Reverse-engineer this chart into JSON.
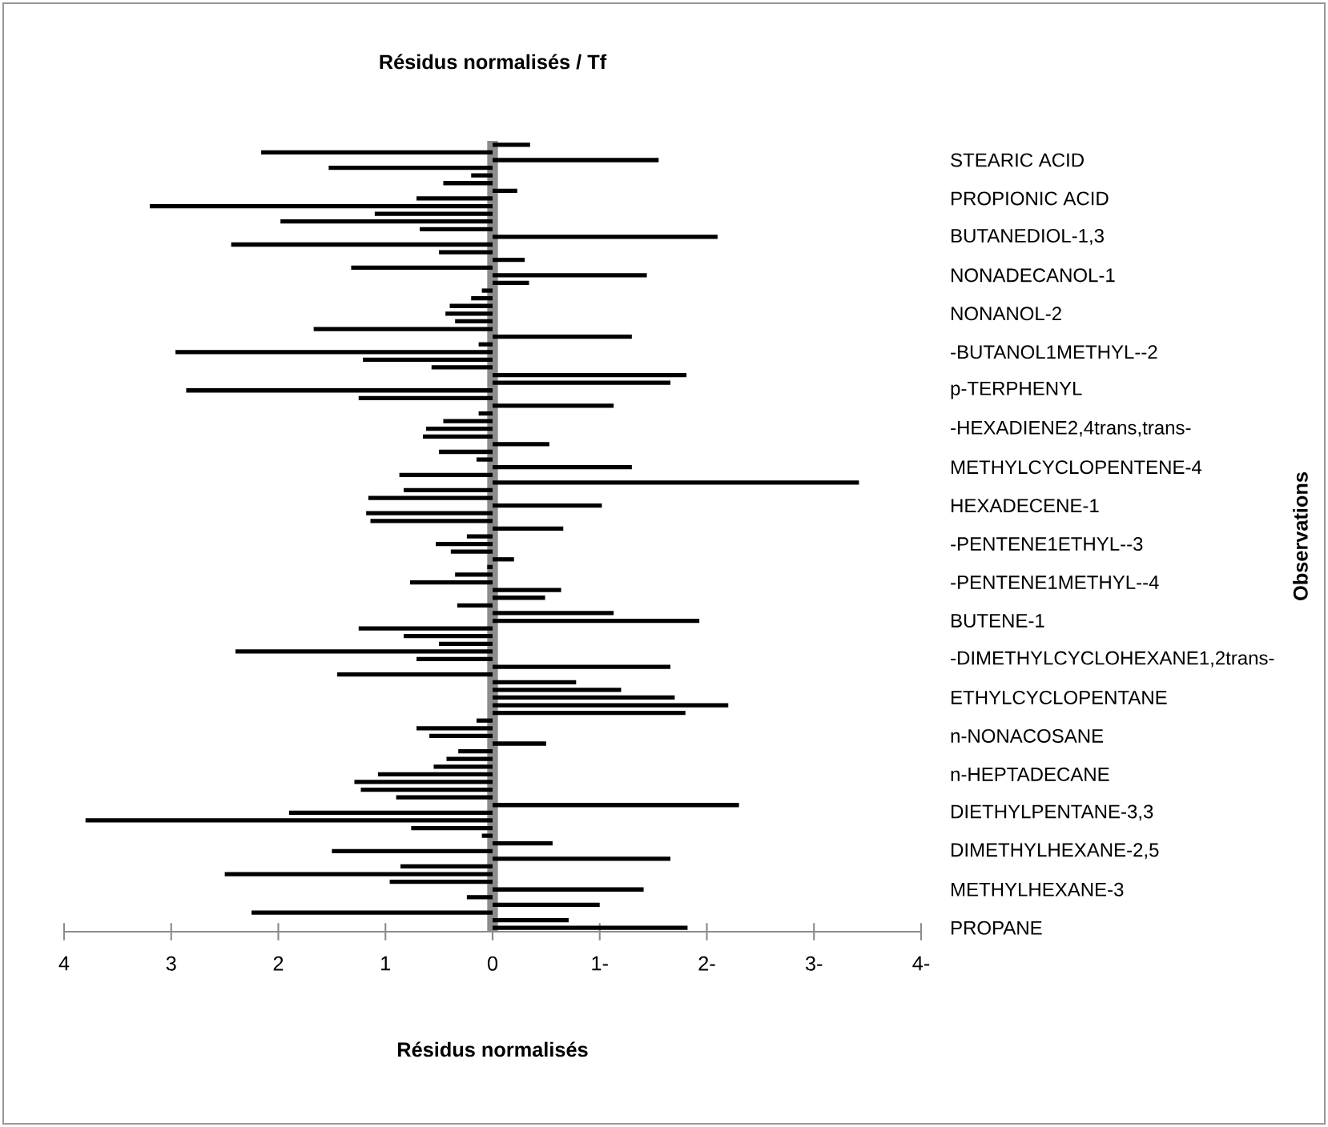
{
  "chart_data": {
    "type": "bar",
    "orientation": "horizontal",
    "title": "Résidus normalisés / Tf",
    "xlabel": "Résidus normalisés",
    "ylabel": "Observations",
    "color": "#000000",
    "categories": [
      null,
      null,
      "STEARIC ACID",
      null,
      null,
      null,
      null,
      "PROPIONIC ACID",
      null,
      null,
      null,
      null,
      "BUTANEDIOL-1,3",
      null,
      null,
      null,
      null,
      "NONADECANOL-1",
      null,
      null,
      null,
      null,
      "NONANOL-2",
      null,
      null,
      null,
      null,
      "-BUTANOL1METHYL--2",
      null,
      null,
      null,
      null,
      "p-TERPHENYL",
      null,
      null,
      null,
      null,
      "-HEXADIENE2,4trans,trans-",
      null,
      null,
      null,
      null,
      "METHYLCYCLOPENTENE-4",
      null,
      null,
      null,
      null,
      "HEXADECENE-1",
      null,
      null,
      null,
      null,
      "-PENTENE1ETHYL--3",
      null,
      null,
      null,
      null,
      "-PENTENE1METHYL--4",
      null,
      null,
      null,
      null,
      "BUTENE-1",
      null,
      null,
      null,
      null,
      "-DIMETHYLCYCLOHEXANE1,2trans-",
      null,
      null,
      null,
      null,
      "ETHYLCYCLOPENTANE",
      null,
      null,
      null,
      null,
      "n-NONACOSANE",
      null,
      null,
      null,
      null,
      "n-HEPTADECANE",
      null,
      null,
      null,
      null,
      "DIETHYLPENTANE-3,3",
      null,
      null,
      null,
      null,
      "DIMETHYLHEXANE-2,5",
      null,
      null,
      null,
      null,
      "METHYLHEXANE-3",
      null,
      null,
      null,
      null,
      "PROPANE"
    ],
    "values": [
      -0.35,
      2.16,
      -1.55,
      1.53,
      0.2,
      0.46,
      -0.23,
      0.71,
      3.2,
      1.1,
      1.98,
      0.68,
      -2.1,
      2.44,
      0.5,
      -0.3,
      1.32,
      -1.44,
      -0.34,
      0.1,
      0.2,
      0.4,
      0.44,
      0.35,
      1.67,
      -1.3,
      0.13,
      2.96,
      1.21,
      0.57,
      -1.81,
      -1.66,
      2.86,
      1.25,
      -1.13,
      0.13,
      0.46,
      0.62,
      0.65,
      -0.53,
      0.5,
      0.15,
      -1.3,
      0.87,
      -3.42,
      0.83,
      1.16,
      -1.02,
      1.18,
      1.14,
      -0.66,
      0.24,
      0.53,
      0.39,
      -0.2,
      0.05,
      0.35,
      0.77,
      -0.64,
      -0.49,
      0.33,
      -1.13,
      -1.93,
      1.25,
      0.83,
      0.5,
      2.4,
      0.71,
      -1.66,
      1.45,
      -0.78,
      -1.2,
      -1.7,
      -2.2,
      -1.8,
      0.15,
      0.71,
      0.59,
      -0.5,
      0.32,
      0.43,
      0.55,
      1.07,
      1.29,
      1.23,
      0.9,
      -2.3,
      1.9,
      3.8,
      0.76,
      0.1,
      -0.56,
      1.5,
      -1.66,
      0.86,
      2.5,
      0.96,
      -1.41,
      0.24,
      -1.0,
      2.25,
      -0.71,
      -1.82
    ],
    "xlim": [
      4,
      -4
    ],
    "xticks": [
      4,
      3,
      2,
      1,
      0,
      {
        "value": -1,
        "label": "1-"
      },
      {
        "value": -2,
        "label": "2-"
      },
      {
        "value": -3,
        "label": "3-"
      },
      {
        "value": -4,
        "label": "4-"
      }
    ]
  }
}
